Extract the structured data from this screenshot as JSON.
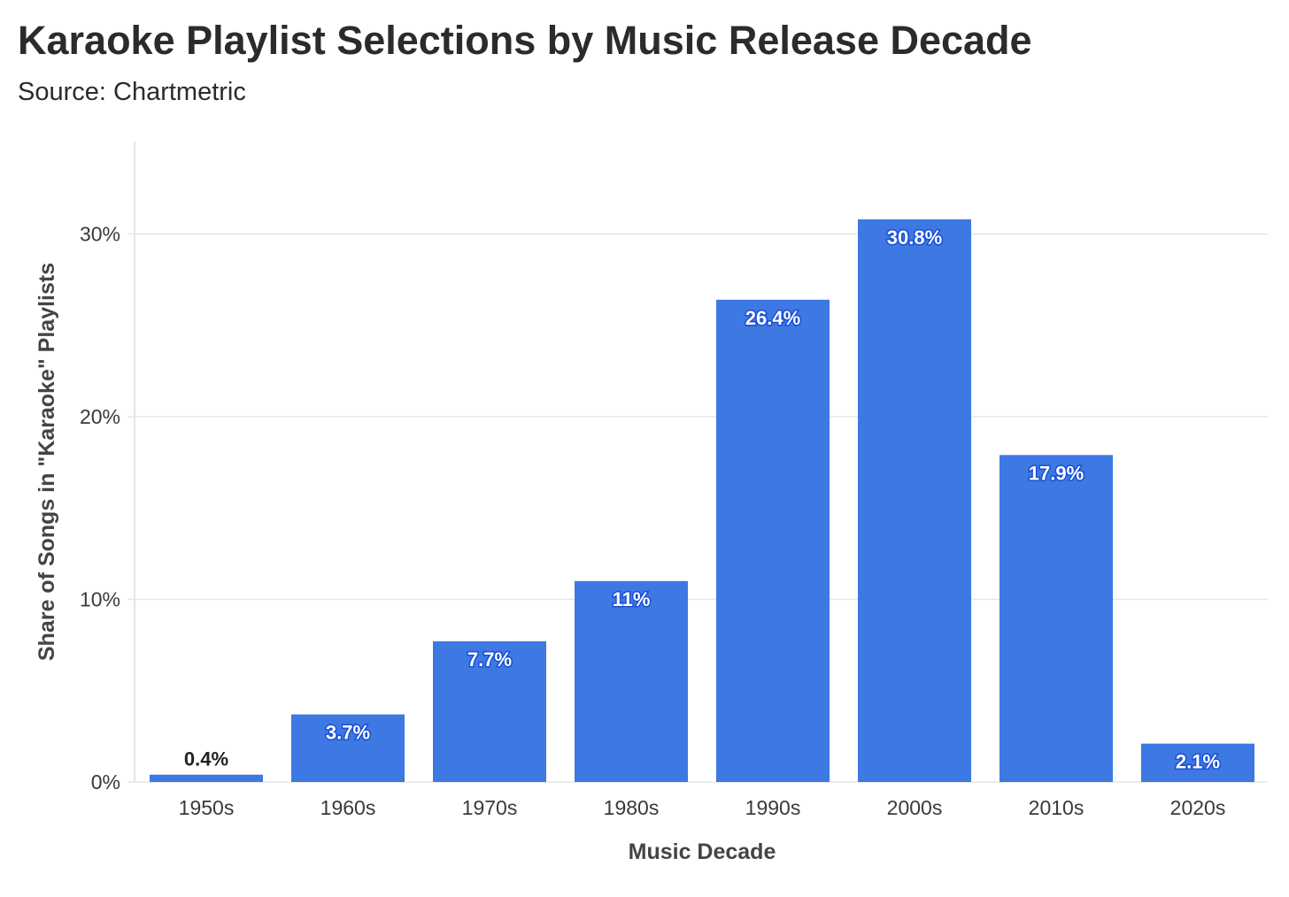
{
  "header": {
    "title": "Karaoke Playlist Selections by Music Release Decade",
    "subtitle": "Source: Chartmetric"
  },
  "colors": {
    "bar": "#3d78e3",
    "grid": "#e6e6e6",
    "axis": "#dddddd"
  },
  "chart_data": {
    "type": "bar",
    "title": "Karaoke Playlist Selections by Music Release Decade",
    "subtitle": "Source: Chartmetric",
    "xlabel": "Music Decade",
    "ylabel": "Share of Songs in \"Karaoke\" Playlists",
    "categories": [
      "1950s",
      "1960s",
      "1970s",
      "1980s",
      "1990s",
      "2000s",
      "2010s",
      "2020s"
    ],
    "values": [
      0.4,
      3.7,
      7.7,
      11,
      26.4,
      30.8,
      17.9,
      2.1
    ],
    "data_labels": [
      "0.4%",
      "3.7%",
      "7.7%",
      "11%",
      "26.4%",
      "30.8%",
      "17.9%",
      "2.1%"
    ],
    "yticks": [
      0,
      10,
      20,
      30
    ],
    "ytick_labels": [
      "0%",
      "10%",
      "20%",
      "30%"
    ],
    "ylim": [
      0,
      35
    ],
    "grid": true,
    "legend": "none"
  }
}
